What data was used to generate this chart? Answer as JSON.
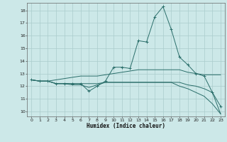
{
  "title": "",
  "xlabel": "Humidex (Indice chaleur)",
  "bg_color": "#cce8e8",
  "grid_color": "#aacccc",
  "line_color": "#2a6e6a",
  "xlim": [
    -0.5,
    23.5
  ],
  "ylim": [
    9.6,
    18.6
  ],
  "yticks": [
    10,
    11,
    12,
    13,
    14,
    15,
    16,
    17,
    18
  ],
  "xticks": [
    0,
    1,
    2,
    3,
    4,
    5,
    6,
    7,
    8,
    9,
    10,
    11,
    12,
    13,
    14,
    15,
    16,
    17,
    18,
    19,
    20,
    21,
    22,
    23
  ],
  "series": [
    {
      "x": [
        0,
        1,
        2,
        3,
        4,
        5,
        6,
        7,
        8,
        9,
        10,
        11,
        12,
        13,
        14,
        15,
        16,
        17,
        18,
        19,
        20,
        21,
        22,
        23
      ],
      "y": [
        12.5,
        12.4,
        12.4,
        12.2,
        12.2,
        12.2,
        12.2,
        11.6,
        12.0,
        12.4,
        13.5,
        13.5,
        13.4,
        15.6,
        15.5,
        17.5,
        18.3,
        16.5,
        14.3,
        13.7,
        13.0,
        12.8,
        11.5,
        10.4
      ],
      "marker": true
    },
    {
      "x": [
        0,
        1,
        2,
        3,
        4,
        5,
        6,
        7,
        8,
        9,
        10,
        11,
        12,
        13,
        14,
        15,
        16,
        17,
        18,
        19,
        20,
        21,
        22,
        23
      ],
      "y": [
        12.5,
        12.4,
        12.4,
        12.5,
        12.6,
        12.7,
        12.8,
        12.8,
        12.8,
        12.9,
        13.0,
        13.1,
        13.2,
        13.3,
        13.3,
        13.3,
        13.3,
        13.3,
        13.3,
        13.1,
        13.0,
        12.9,
        12.9,
        12.9
      ],
      "marker": false
    },
    {
      "x": [
        0,
        1,
        2,
        3,
        4,
        5,
        6,
        7,
        8,
        9,
        10,
        11,
        12,
        13,
        14,
        15,
        16,
        17,
        18,
        19,
        20,
        21,
        22,
        23
      ],
      "y": [
        12.5,
        12.4,
        12.4,
        12.2,
        12.2,
        12.2,
        12.2,
        12.2,
        12.2,
        12.3,
        12.3,
        12.3,
        12.3,
        12.3,
        12.3,
        12.3,
        12.3,
        12.3,
        12.3,
        12.1,
        12.0,
        11.8,
        11.5,
        9.8
      ],
      "marker": false
    },
    {
      "x": [
        0,
        1,
        2,
        3,
        4,
        5,
        6,
        7,
        8,
        9,
        10,
        11,
        12,
        13,
        14,
        15,
        16,
        17,
        18,
        19,
        20,
        21,
        22,
        23
      ],
      "y": [
        12.5,
        12.4,
        12.4,
        12.2,
        12.2,
        12.1,
        12.1,
        11.9,
        12.1,
        12.3,
        12.3,
        12.3,
        12.3,
        12.3,
        12.3,
        12.3,
        12.3,
        12.3,
        12.0,
        11.8,
        11.5,
        11.2,
        10.6,
        9.8
      ],
      "marker": false
    }
  ]
}
